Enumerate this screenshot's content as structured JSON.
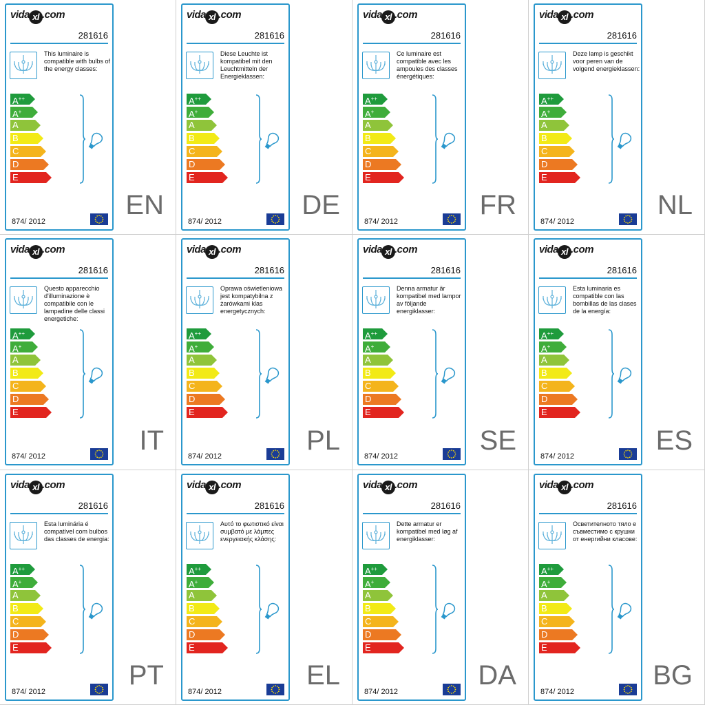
{
  "product_code": "281616",
  "regulation": "874/ 2012",
  "logo": {
    "left": "vida",
    "mark": "xl",
    "right": ".com"
  },
  "icons": {
    "luminaire": "chandelier-icon",
    "bulb": "bulb-icon",
    "flag": "eu-flag-icon"
  },
  "energy_classes": [
    {
      "letter": "A",
      "sup": "++",
      "color": "#1f9b3c"
    },
    {
      "letter": "A",
      "sup": "+",
      "color": "#3fad3a"
    },
    {
      "letter": "A",
      "sup": "",
      "color": "#8fc43a"
    },
    {
      "letter": "B",
      "sup": "",
      "color": "#f2ea16"
    },
    {
      "letter": "C",
      "sup": "",
      "color": "#f4b41c"
    },
    {
      "letter": "D",
      "sup": "",
      "color": "#ec7922"
    },
    {
      "letter": "E",
      "sup": "",
      "color": "#e2251f"
    }
  ],
  "colors": {
    "frame": "#2a97cc",
    "flag": "#1a3c96"
  },
  "labels": [
    {
      "lang": "EN",
      "text": "This luminaire is compatible with bulbs of the energy classes:"
    },
    {
      "lang": "DE",
      "text": "Diese Leuchte ist kompatibel mit den Leuchtmitteln der Energieklassen:"
    },
    {
      "lang": "FR",
      "text": "Ce luminaire est compatible avec les ampoules des classes énergétiques:"
    },
    {
      "lang": "NL",
      "text": "Deze lamp is geschikt voor peren van de volgend energieklassen:"
    },
    {
      "lang": "IT",
      "text": "Questo apparecchio d'illuminazione è compatibile con le lampadine delle classi energetiche:"
    },
    {
      "lang": "PL",
      "text": "Oprawa oświetleniowa jest kompatybilna z żarówkami klas energetycznych:"
    },
    {
      "lang": "SE",
      "text": "Denna armatur är kompatibel med lampor av följande energiklasser:"
    },
    {
      "lang": "ES",
      "text": "Esta luminaria es compatible con las bombillas de las clases de la energía:"
    },
    {
      "lang": "PT",
      "text": "Esta luminária é compatível com bulbos das classes de energia:"
    },
    {
      "lang": "EL",
      "text": "Αυτό το φωτιστικό είναι συμβατό με λάμπες ενεργειακής κλάσης:"
    },
    {
      "lang": "DA",
      "text": "Dette armatur er kompatibel med løg af energiklasser:"
    },
    {
      "lang": "BG",
      "text": "Осветителното тяло е съвместимо с крушки от енергийни класове:"
    }
  ]
}
